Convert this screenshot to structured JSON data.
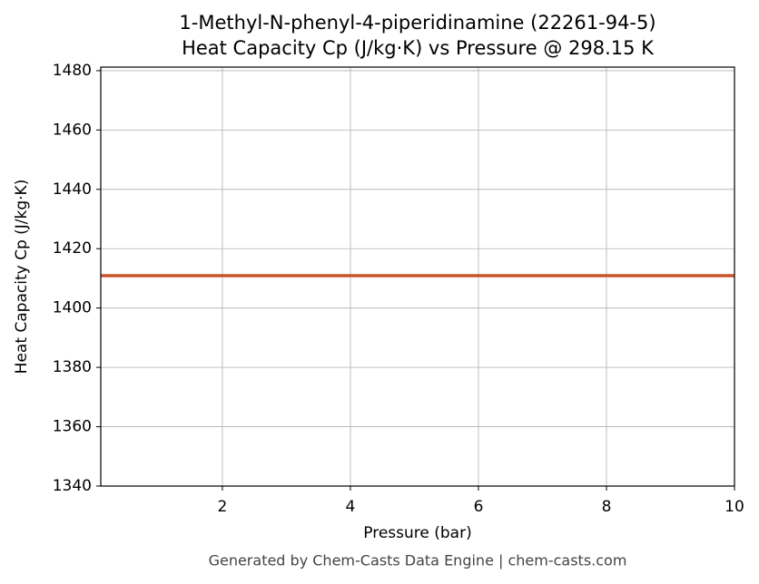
{
  "chart_data": {
    "type": "line",
    "title": "1-Methyl-N-phenyl-4-piperidinamine (22261-94-5)",
    "subtitle": "Heat Capacity Cp (J/kg·K) vs Pressure @ 298.15 K",
    "x_label": "Pressure (bar)",
    "y_label": "Heat Capacity Cp (J/kg·K)",
    "footer": "Generated by Chem-Casts Data Engine | chem-casts.com",
    "x": [
      0.1,
      10
    ],
    "series": [
      {
        "name": "Cp",
        "color": "#c8552a",
        "values": [
          1410.9,
          1410.9
        ]
      }
    ],
    "xlim": [
      0.1,
      10
    ],
    "xticks": [
      2,
      4,
      6,
      8,
      10
    ],
    "ylim": [
      1340,
      1481.2
    ],
    "yticks": [
      1340,
      1360,
      1380,
      1400,
      1420,
      1440,
      1460,
      1480
    ],
    "grid": true
  }
}
